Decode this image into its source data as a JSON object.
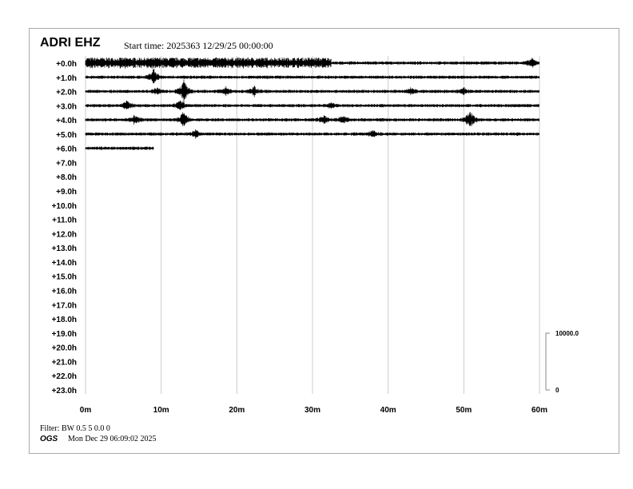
{
  "header": {
    "station": "ADRI EHZ",
    "start_time": "Start time: 2025363 12/29/25 00:00:00"
  },
  "footer": {
    "filter": "Filter: BW 0.5 5 0.0 0",
    "org": "OGS",
    "timestamp": "Mon Dec 29 06:09:02 2025"
  },
  "chart_data": {
    "type": "line",
    "title": "ADRI EHZ",
    "row_labels": [
      "+0.0h",
      "+1.0h",
      "+2.0h",
      "+3.0h",
      "+4.0h",
      "+5.0h",
      "+6.0h",
      "+7.0h",
      "+8.0h",
      "+9.0h",
      "+10.0h",
      "+11.0h",
      "+12.0h",
      "+13.0h",
      "+14.0h",
      "+15.0h",
      "+16.0h",
      "+17.0h",
      "+18.0h",
      "+19.0h",
      "+20.0h",
      "+21.0h",
      "+22.0h",
      "+23.0h"
    ],
    "x_ticks": [
      "0m",
      "10m",
      "20m",
      "30m",
      "40m",
      "50m",
      "60m"
    ],
    "xlim": [
      0,
      60
    ],
    "grid": true,
    "scale_bar": {
      "top_label": "10000.0",
      "bottom_label": "0"
    },
    "trace_color": "#000000",
    "grid_color": "#cccccc",
    "rows": [
      {
        "hour": 0,
        "end_min": 60,
        "high_amplitude_until_min": 32.5,
        "events": [
          {
            "min": 59,
            "amp": 0.6
          }
        ]
      },
      {
        "hour": 1,
        "end_min": 60,
        "events": [
          {
            "min": 9,
            "amp": 1.2
          }
        ]
      },
      {
        "hour": 2,
        "end_min": 60,
        "events": [
          {
            "min": 13,
            "amp": 1.6
          },
          {
            "min": 9.5,
            "amp": 0.6
          },
          {
            "min": 18.5,
            "amp": 0.6
          },
          {
            "min": 22.3,
            "amp": 0.6
          },
          {
            "min": 43,
            "amp": 0.4
          },
          {
            "min": 50,
            "amp": 0.4
          }
        ]
      },
      {
        "hour": 3,
        "end_min": 60,
        "events": [
          {
            "min": 5.5,
            "amp": 0.6
          },
          {
            "min": 12.5,
            "amp": 0.8
          },
          {
            "min": 32.5,
            "amp": 0.4
          }
        ]
      },
      {
        "hour": 4,
        "end_min": 60,
        "events": [
          {
            "min": 13,
            "amp": 1.2
          },
          {
            "min": 6.5,
            "amp": 0.6
          },
          {
            "min": 31.5,
            "amp": 0.6
          },
          {
            "min": 50.8,
            "amp": 1.4
          },
          {
            "min": 34,
            "amp": 0.5
          }
        ]
      },
      {
        "hour": 5,
        "end_min": 60,
        "events": [
          {
            "min": 14.5,
            "amp": 0.5
          },
          {
            "min": 38,
            "amp": 0.4
          }
        ]
      },
      {
        "hour": 6,
        "end_min": 9,
        "events": []
      }
    ]
  }
}
